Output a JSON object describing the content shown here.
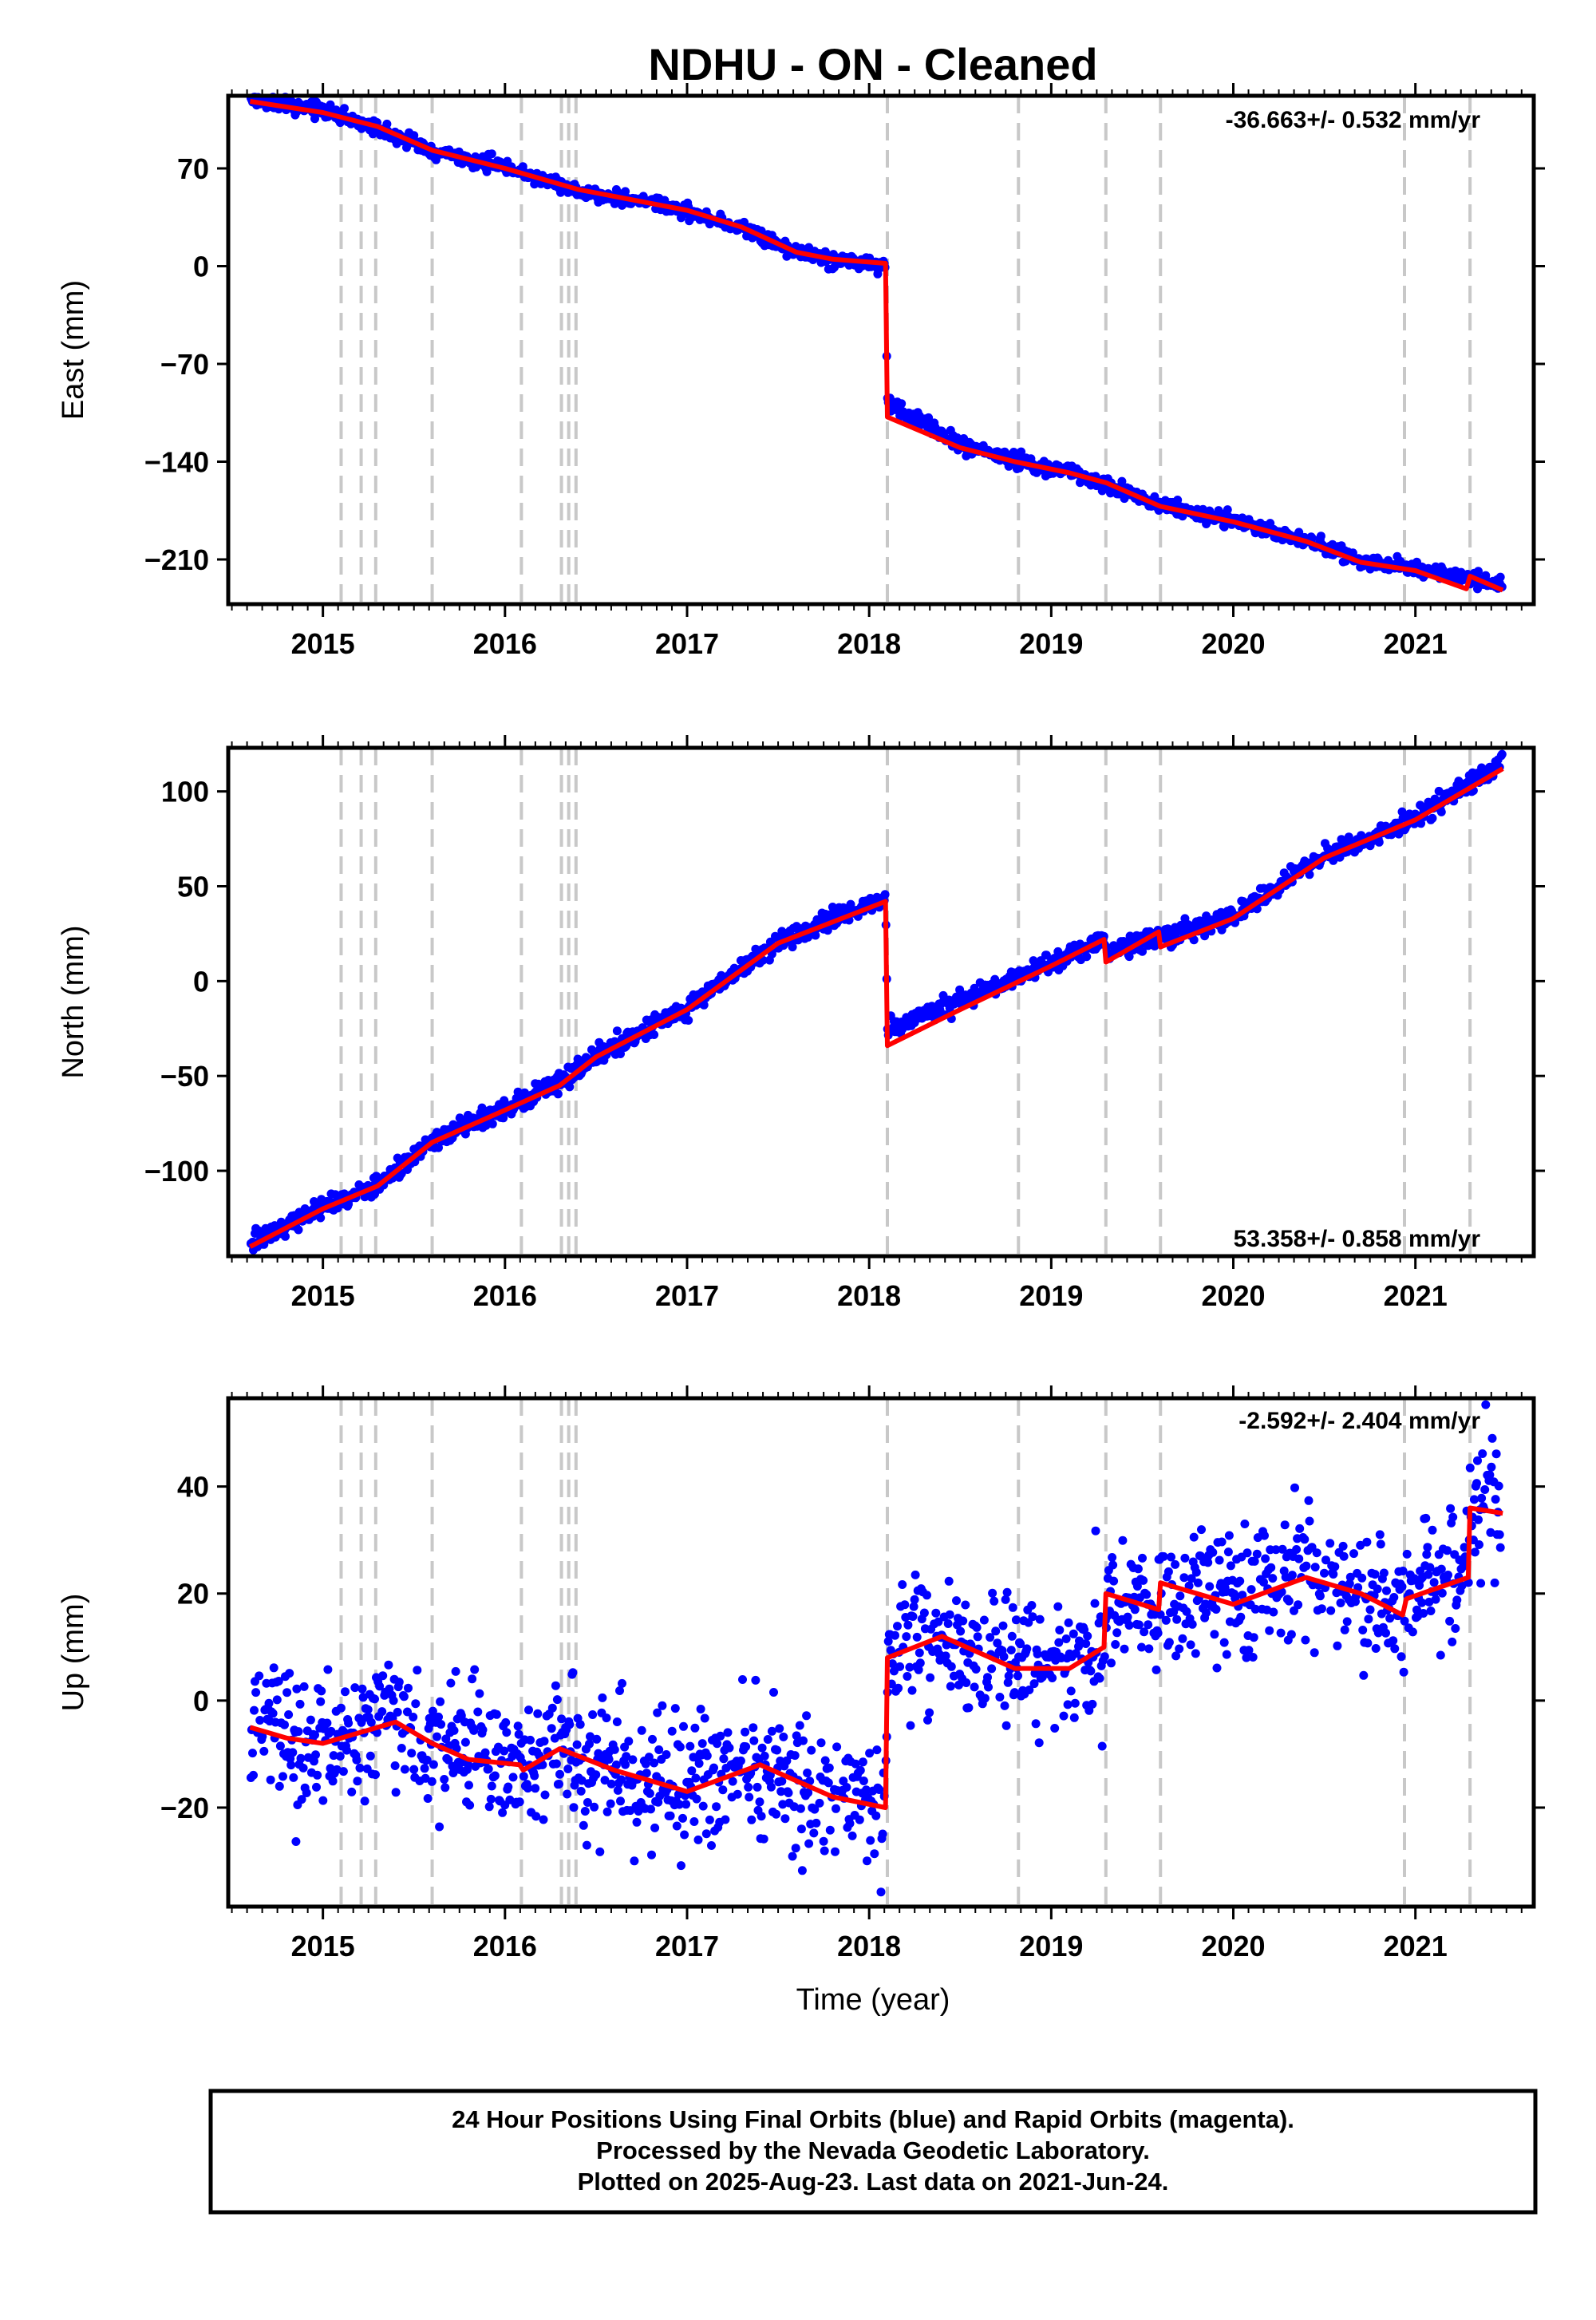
{
  "title": "NDHU  - ON - Cleaned",
  "xlabel": "Time (year)",
  "footer": [
    "24 Hour Positions Using Final Orbits (blue) and Rapid Orbits (magenta).",
    "Processed by the Nevada Geodetic Laboratory.",
    "Plotted on 2025-Aug-23. Last data on 2021-Jun-24."
  ],
  "colors": {
    "points": "#0000ff",
    "model": "#ff0000",
    "steps": "#c8c8c8",
    "frame": "#000000"
  },
  "chart_data": [
    {
      "type": "scatter",
      "component": "East",
      "ylabel": "East (mm)",
      "rate_text": "-36.663+/- 0.532 mm/yr",
      "xlim": [
        2014.48,
        2021.65
      ],
      "ylim": [
        -242,
        122
      ],
      "yticks": [
        70,
        0,
        -70,
        -140,
        -210
      ],
      "ytick_labels": [
        "70",
        "0",
        "−70",
        "−140",
        "−210"
      ],
      "xticks": [
        2015,
        2016,
        2017,
        2018,
        2019,
        2020,
        2021
      ],
      "xtick_labels": [
        "2015",
        "2016",
        "2017",
        "2018",
        "2019",
        "2020",
        "2021"
      ],
      "step_epochs": [
        2015.1,
        2015.21,
        2015.29,
        2015.6,
        2016.09,
        2016.31,
        2016.35,
        2016.39,
        2018.1,
        2018.82,
        2019.3,
        2019.6,
        2020.94,
        2021.3
      ],
      "model": [
        [
          2014.6,
          118
        ],
        [
          2015.0,
          110
        ],
        [
          2015.3,
          100
        ],
        [
          2015.6,
          83
        ],
        [
          2016.0,
          70
        ],
        [
          2016.4,
          55
        ],
        [
          2016.8,
          45
        ],
        [
          2017.0,
          40
        ],
        [
          2017.3,
          28
        ],
        [
          2017.6,
          10
        ],
        [
          2017.8,
          5
        ],
        [
          2018.09,
          2
        ],
        [
          2018.1,
          -108
        ],
        [
          2018.5,
          -130
        ],
        [
          2018.8,
          -140
        ],
        [
          2019.1,
          -148
        ],
        [
          2019.3,
          -155
        ],
        [
          2019.6,
          -172
        ],
        [
          2020.0,
          -183
        ],
        [
          2020.4,
          -197
        ],
        [
          2020.7,
          -212
        ],
        [
          2021.0,
          -218
        ],
        [
          2021.28,
          -231
        ],
        [
          2021.3,
          -222
        ],
        [
          2021.48,
          -232
        ]
      ],
      "observed": [
        [
          2014.6,
          119
        ],
        [
          2015.0,
          111
        ],
        [
          2015.3,
          99
        ],
        [
          2015.6,
          82
        ],
        [
          2016.0,
          71
        ],
        [
          2016.4,
          54
        ],
        [
          2016.8,
          45
        ],
        [
          2017.0,
          39
        ],
        [
          2017.3,
          27
        ],
        [
          2017.6,
          11
        ],
        [
          2017.8,
          5
        ],
        [
          2018.09,
          0
        ],
        [
          2018.1,
          -97
        ],
        [
          2018.5,
          -127
        ],
        [
          2018.8,
          -139
        ],
        [
          2019.1,
          -147
        ],
        [
          2019.3,
          -157
        ],
        [
          2019.6,
          -171
        ],
        [
          2020.0,
          -182
        ],
        [
          2020.4,
          -196
        ],
        [
          2020.7,
          -211
        ],
        [
          2021.0,
          -216
        ],
        [
          2021.3,
          -224
        ],
        [
          2021.48,
          -227
        ]
      ],
      "noise_mm": 2.5
    },
    {
      "type": "scatter",
      "component": "North",
      "ylabel": "North (mm)",
      "rate_text": "53.358+/- 0.858 mm/yr",
      "xlim": [
        2014.48,
        2021.65
      ],
      "ylim": [
        -145,
        123
      ],
      "yticks": [
        100,
        50,
        0,
        -50,
        -100
      ],
      "ytick_labels": [
        "100",
        "50",
        "0",
        "−50",
        "−100"
      ],
      "xticks": [
        2015,
        2016,
        2017,
        2018,
        2019,
        2020,
        2021
      ],
      "xtick_labels": [
        "2015",
        "2016",
        "2017",
        "2018",
        "2019",
        "2020",
        "2021"
      ],
      "step_epochs": [
        2015.1,
        2015.21,
        2015.29,
        2015.6,
        2016.09,
        2016.31,
        2016.35,
        2016.39,
        2018.1,
        2018.82,
        2019.3,
        2019.6,
        2020.94,
        2021.3
      ],
      "model": [
        [
          2014.6,
          -140
        ],
        [
          2015.0,
          -120
        ],
        [
          2015.3,
          -108
        ],
        [
          2015.6,
          -85
        ],
        [
          2016.0,
          -68
        ],
        [
          2016.3,
          -55
        ],
        [
          2016.5,
          -40
        ],
        [
          2017.0,
          -15
        ],
        [
          2017.5,
          20
        ],
        [
          2018.09,
          42
        ],
        [
          2018.1,
          -34
        ],
        [
          2018.5,
          -15
        ],
        [
          2019.0,
          8
        ],
        [
          2019.29,
          22
        ],
        [
          2019.3,
          10
        ],
        [
          2019.59,
          26
        ],
        [
          2019.6,
          18
        ],
        [
          2020.0,
          33
        ],
        [
          2020.5,
          65
        ],
        [
          2021.0,
          85
        ],
        [
          2021.48,
          112
        ]
      ],
      "observed": [
        [
          2014.6,
          -138
        ],
        [
          2015.0,
          -119
        ],
        [
          2015.3,
          -107
        ],
        [
          2015.6,
          -84
        ],
        [
          2016.0,
          -67
        ],
        [
          2016.3,
          -54
        ],
        [
          2016.5,
          -39
        ],
        [
          2017.0,
          -14
        ],
        [
          2017.5,
          21
        ],
        [
          2018.09,
          44
        ],
        [
          2018.1,
          -25
        ],
        [
          2018.5,
          -10
        ],
        [
          2019.0,
          9
        ],
        [
          2019.29,
          22
        ],
        [
          2019.3,
          14
        ],
        [
          2019.59,
          24
        ],
        [
          2019.6,
          24
        ],
        [
          2020.0,
          34
        ],
        [
          2020.5,
          66
        ],
        [
          2021.0,
          86
        ],
        [
          2021.48,
          115
        ]
      ],
      "noise_mm": 2.5
    },
    {
      "type": "scatter",
      "component": "Up",
      "ylabel": "Up (mm)",
      "rate_text": "-2.592+/- 2.404 mm/yr",
      "xlim": [
        2014.48,
        2021.65
      ],
      "ylim": [
        -38.5,
        56.5
      ],
      "yticks": [
        40,
        20,
        0,
        -20
      ],
      "ytick_labels": [
        "40",
        "20",
        "0",
        "−20"
      ],
      "xticks": [
        2015,
        2016,
        2017,
        2018,
        2019,
        2020,
        2021
      ],
      "xtick_labels": [
        "2015",
        "2016",
        "2017",
        "2018",
        "2019",
        "2020",
        "2021"
      ],
      "step_epochs": [
        2015.1,
        2015.21,
        2015.29,
        2015.6,
        2016.09,
        2016.31,
        2016.35,
        2016.39,
        2018.1,
        2018.82,
        2019.3,
        2019.6,
        2020.94,
        2021.3
      ],
      "model": [
        [
          2014.6,
          -5
        ],
        [
          2014.8,
          -7
        ],
        [
          2015.0,
          -8
        ],
        [
          2015.2,
          -6
        ],
        [
          2015.4,
          -4
        ],
        [
          2015.6,
          -8
        ],
        [
          2015.8,
          -11
        ],
        [
          2016.08,
          -12
        ],
        [
          2016.1,
          -13
        ],
        [
          2016.3,
          -9
        ],
        [
          2016.6,
          -13
        ],
        [
          2017.0,
          -17
        ],
        [
          2017.4,
          -12
        ],
        [
          2017.8,
          -18
        ],
        [
          2018.09,
          -20
        ],
        [
          2018.1,
          8
        ],
        [
          2018.4,
          12
        ],
        [
          2018.8,
          6
        ],
        [
          2019.1,
          6
        ],
        [
          2019.29,
          10
        ],
        [
          2019.3,
          20
        ],
        [
          2019.59,
          17
        ],
        [
          2019.6,
          22
        ],
        [
          2020.0,
          18
        ],
        [
          2020.4,
          23
        ],
        [
          2020.7,
          20
        ],
        [
          2020.93,
          16
        ],
        [
          2020.95,
          19
        ],
        [
          2021.29,
          23
        ],
        [
          2021.3,
          36
        ],
        [
          2021.48,
          35
        ]
      ],
      "observed": [
        [
          2014.6,
          -3
        ],
        [
          2014.8,
          -6
        ],
        [
          2015.0,
          -7
        ],
        [
          2015.2,
          -5
        ],
        [
          2015.4,
          -2
        ],
        [
          2015.6,
          -8
        ],
        [
          2015.8,
          -10
        ],
        [
          2016.08,
          -12
        ],
        [
          2016.1,
          -12
        ],
        [
          2016.3,
          -9
        ],
        [
          2016.6,
          -13
        ],
        [
          2017.0,
          -16
        ],
        [
          2017.4,
          -12
        ],
        [
          2017.8,
          -17
        ],
        [
          2018.09,
          -22
        ],
        [
          2018.1,
          7
        ],
        [
          2018.4,
          12
        ],
        [
          2018.8,
          6
        ],
        [
          2019.1,
          6
        ],
        [
          2019.29,
          10
        ],
        [
          2019.3,
          18
        ],
        [
          2019.59,
          18
        ],
        [
          2019.6,
          20
        ],
        [
          2020.0,
          19
        ],
        [
          2020.4,
          24
        ],
        [
          2020.7,
          20
        ],
        [
          2020.93,
          15
        ],
        [
          2020.95,
          19
        ],
        [
          2021.29,
          24
        ],
        [
          2021.3,
          34
        ],
        [
          2021.48,
          38
        ]
      ],
      "noise_mm": 6
    }
  ]
}
